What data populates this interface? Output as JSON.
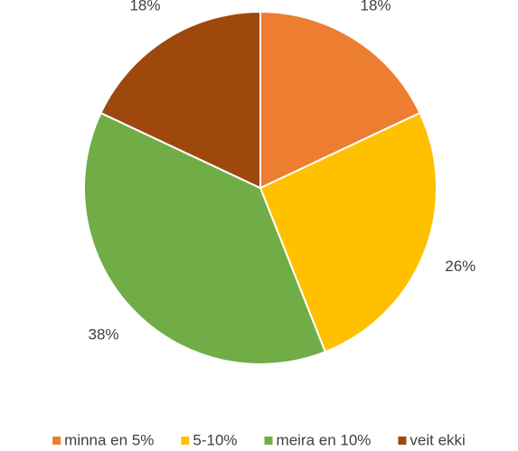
{
  "chart_data": {
    "type": "pie",
    "categories": [
      "minna en 5%",
      "5-10%",
      "meira en 10%",
      "veit ekki"
    ],
    "values": [
      18,
      26,
      38,
      18
    ],
    "value_labels": [
      "18%",
      "26%",
      "38%",
      "18%"
    ],
    "colors": [
      "#ed7d31",
      "#ffc000",
      "#70ad47",
      "#9e480e"
    ],
    "legend": "bottom"
  }
}
